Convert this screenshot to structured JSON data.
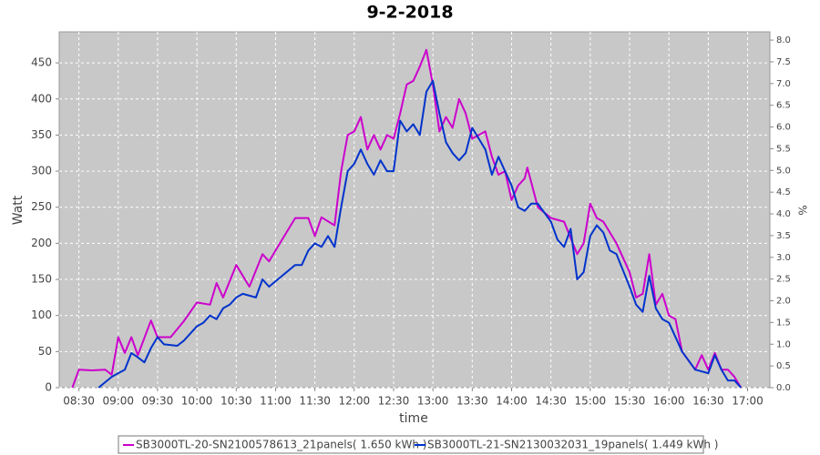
{
  "chart_data": {
    "type": "line",
    "title": "9-2-2018",
    "x_label": "time",
    "y_label": "Watt",
    "y2_label": "%",
    "xlim": [
      "08:15",
      "17:17"
    ],
    "xticks": [
      "08:30",
      "09:00",
      "09:30",
      "10:00",
      "10:30",
      "11:00",
      "11:30",
      "12:00",
      "12:30",
      "13:00",
      "13:30",
      "14:00",
      "14:30",
      "15:00",
      "15:30",
      "16:00",
      "16:30",
      "17:00"
    ],
    "ylim": [
      0,
      493
    ],
    "yticks": [
      0,
      50,
      100,
      150,
      200,
      250,
      300,
      350,
      400,
      450
    ],
    "y2lim": [
      0,
      8.19
    ],
    "y2ticks": [
      {
        "value": 0,
        "label": "0.0"
      },
      {
        "value": 0.5,
        "label": "0.5"
      },
      {
        "value": 1,
        "label": "1.0"
      },
      {
        "value": 1.5,
        "label": "1.5"
      },
      {
        "value": 2,
        "label": "2.0"
      },
      {
        "value": 2.5,
        "label": "2.5"
      },
      {
        "value": 3,
        "label": "3.0"
      },
      {
        "value": 3.5,
        "label": "3.5"
      },
      {
        "value": 4,
        "label": "4.0"
      },
      {
        "value": 4.5,
        "label": "4.5"
      },
      {
        "value": 5,
        "label": "5.0"
      },
      {
        "value": 5.5,
        "label": "5.5"
      },
      {
        "value": 6,
        "label": "6.0"
      },
      {
        "value": 6.5,
        "label": "6.5"
      },
      {
        "value": 7,
        "label": "7.0"
      },
      {
        "value": 7.5,
        "label": "7.5"
      },
      {
        "value": 8,
        "label": "8.0"
      }
    ],
    "grid": true,
    "series": [
      {
        "name": "SB3000TL-20-SN2100578613_21panels( 1.650 kWh )",
        "color": "#cc00cc",
        "x": [
          "08:25",
          "08:30",
          "08:40",
          "08:50",
          "08:55",
          "09:00",
          "09:05",
          "09:10",
          "09:15",
          "09:25",
          "09:30",
          "09:40",
          "09:50",
          "10:00",
          "10:10",
          "10:15",
          "10:20",
          "10:30",
          "10:40",
          "10:50",
          "10:55",
          "11:05",
          "11:15",
          "11:25",
          "11:30",
          "11:35",
          "11:45",
          "11:50",
          "11:55",
          "12:00",
          "12:05",
          "12:10",
          "12:15",
          "12:20",
          "12:25",
          "12:30",
          "12:35",
          "12:40",
          "12:45",
          "12:50",
          "12:55",
          "13:00",
          "13:05",
          "13:10",
          "13:15",
          "13:20",
          "13:25",
          "13:30",
          "13:40",
          "13:45",
          "13:50",
          "13:55",
          "14:00",
          "14:05",
          "14:10",
          "14:12",
          "14:20",
          "14:30",
          "14:40",
          "14:50",
          "14:55",
          "15:00",
          "15:05",
          "15:10",
          "15:20",
          "15:30",
          "15:35",
          "15:40",
          "15:45",
          "15:50",
          "15:55",
          "16:00",
          "16:05",
          "16:10",
          "16:20",
          "16:25",
          "16:30",
          "16:35",
          "16:40",
          "16:45",
          "16:50",
          "16:55"
        ],
        "values": [
          0,
          25,
          24,
          25,
          18,
          70,
          48,
          70,
          45,
          93,
          70,
          70,
          92,
          118,
          115,
          145,
          125,
          170,
          140,
          185,
          175,
          205,
          235,
          235,
          210,
          236,
          225,
          300,
          350,
          355,
          375,
          330,
          350,
          330,
          350,
          345,
          380,
          420,
          425,
          445,
          468,
          420,
          355,
          375,
          360,
          400,
          380,
          345,
          355,
          320,
          295,
          300,
          260,
          280,
          290,
          305,
          250,
          235,
          230,
          185,
          200,
          255,
          235,
          230,
          200,
          160,
          125,
          130,
          185,
          115,
          130,
          100,
          95,
          50,
          25,
          45,
          25,
          48,
          25,
          25,
          15,
          0
        ]
      },
      {
        "name": "SB3000TL-21-SN2130032031_19panels( 1.449 kWh )",
        "color": "#0033cc",
        "x": [
          "08:45",
          "08:55",
          "09:00",
          "09:05",
          "09:10",
          "09:15",
          "09:20",
          "09:25",
          "09:30",
          "09:35",
          "09:45",
          "09:50",
          "10:00",
          "10:05",
          "10:10",
          "10:15",
          "10:20",
          "10:25",
          "10:30",
          "10:35",
          "10:45",
          "10:50",
          "10:55",
          "11:05",
          "11:15",
          "11:20",
          "11:25",
          "11:30",
          "11:35",
          "11:40",
          "11:45",
          "11:50",
          "11:55",
          "12:00",
          "12:05",
          "12:10",
          "12:15",
          "12:20",
          "12:25",
          "12:30",
          "12:35",
          "12:40",
          "12:45",
          "12:50",
          "12:55",
          "13:00",
          "13:05",
          "13:10",
          "13:15",
          "13:20",
          "13:25",
          "13:30",
          "13:35",
          "13:40",
          "13:45",
          "13:50",
          "13:55",
          "14:00",
          "14:05",
          "14:10",
          "14:15",
          "14:20",
          "14:30",
          "14:35",
          "14:40",
          "14:45",
          "14:50",
          "14:55",
          "15:00",
          "15:05",
          "15:10",
          "15:15",
          "15:20",
          "15:30",
          "15:35",
          "15:40",
          "15:45",
          "15:50",
          "15:55",
          "16:00",
          "16:10",
          "16:20",
          "16:30",
          "16:35",
          "16:40",
          "16:45",
          "16:50",
          "16:55"
        ],
        "values": [
          0,
          15,
          20,
          25,
          48,
          42,
          35,
          55,
          70,
          60,
          58,
          65,
          85,
          90,
          100,
          95,
          110,
          115,
          125,
          130,
          125,
          150,
          140,
          155,
          170,
          170,
          190,
          200,
          195,
          210,
          195,
          250,
          300,
          310,
          330,
          310,
          295,
          315,
          300,
          300,
          370,
          355,
          365,
          350,
          410,
          425,
          380,
          340,
          325,
          315,
          325,
          360,
          345,
          330,
          295,
          320,
          300,
          280,
          250,
          245,
          255,
          255,
          230,
          205,
          195,
          220,
          150,
          160,
          210,
          225,
          215,
          190,
          185,
          140,
          115,
          105,
          155,
          110,
          95,
          90,
          50,
          25,
          20,
          45,
          25,
          10,
          10,
          0
        ]
      }
    ]
  }
}
